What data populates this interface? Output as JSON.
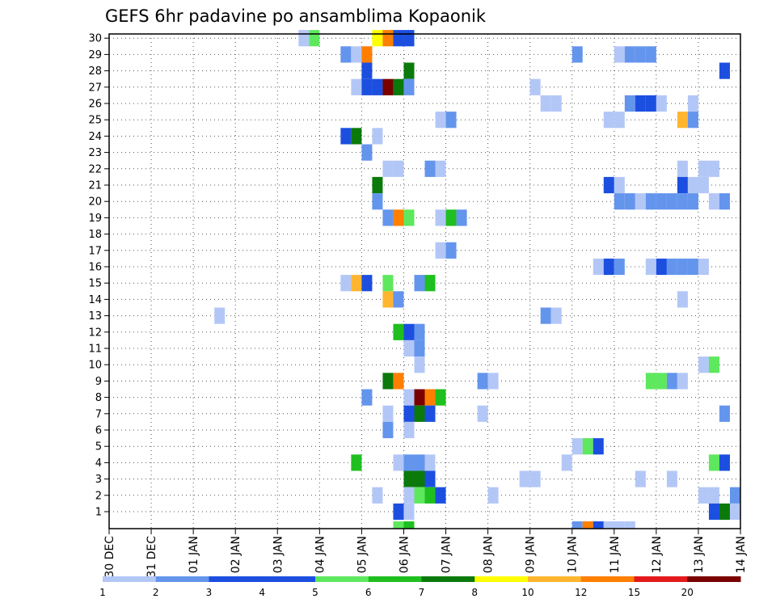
{
  "chart_data": {
    "type": "heatmap",
    "title": "GEFS 6hr padavine po ansamblima Kopaonik",
    "xlabel": "",
    "ylabel": "",
    "x_tick_labels": [
      "30 DEC",
      "31 DEC",
      "01 JAN",
      "02 JAN",
      "03 JAN",
      "04 JAN",
      "05 JAN",
      "06 JAN",
      "07 JAN",
      "08 JAN",
      "09 JAN",
      "10 JAN",
      "11 JAN",
      "12 JAN",
      "13 JAN",
      "14 JAN"
    ],
    "y_tick_labels": [
      "1",
      "2",
      "3",
      "4",
      "5",
      "6",
      "7",
      "8",
      "9",
      "10",
      "11",
      "12",
      "13",
      "14",
      "15",
      "16",
      "17",
      "18",
      "19",
      "20",
      "21",
      "22",
      "23",
      "24",
      "25",
      "26",
      "27",
      "28",
      "29",
      "30"
    ],
    "time_steps_per_day": 4,
    "x_range_days": [
      0,
      15
    ],
    "y_range_members": [
      1,
      30
    ],
    "grid": "dotted",
    "colorbar": {
      "position": "bottom",
      "levels": [
        "1",
        "2",
        "3",
        "4",
        "5",
        "6",
        "7",
        "8",
        "10",
        "12",
        "15",
        "20"
      ],
      "colors": [
        "#b3c7f7",
        "#6495ed",
        "#1c4fe0",
        "#1c4fe0",
        "#5ee85e",
        "#1fbf1f",
        "#0b7a0b",
        "#ffff00",
        "#ffb52e",
        "#ff7f00",
        "#e31a1c",
        "#7a0000"
      ]
    },
    "classes": [
      {
        "level": 1,
        "color": "#b3c7f7"
      },
      {
        "level": 2,
        "color": "#6495ed"
      },
      {
        "level": 3,
        "color": "#1c4fe0"
      },
      {
        "level": 4,
        "color": "#5ee85e"
      },
      {
        "level": 5,
        "color": "#1fbf1f"
      },
      {
        "level": 6,
        "color": "#0b7a0b"
      },
      {
        "level": 7,
        "color": "#ffff00"
      },
      {
        "level": 8,
        "color": "#ffb52e"
      },
      {
        "level": 9,
        "color": "#ff7f00"
      },
      {
        "level": 10,
        "color": "#e31a1c"
      },
      {
        "level": 11,
        "color": "#7a0000"
      }
    ],
    "cells_note": "each cell: [time_step_index_from_30DEC_00Z, member_row, class_level]",
    "cells": [
      [
        18,
        30,
        1
      ],
      [
        19,
        30,
        4
      ],
      [
        25,
        30,
        7
      ],
      [
        26,
        30,
        9
      ],
      [
        27,
        30,
        3
      ],
      [
        28,
        30,
        3
      ],
      [
        22,
        29,
        2
      ],
      [
        23,
        29,
        1
      ],
      [
        24,
        29,
        9
      ],
      [
        44,
        29,
        2
      ],
      [
        48,
        29,
        1
      ],
      [
        49,
        29,
        2
      ],
      [
        50,
        29,
        2
      ],
      [
        51,
        29,
        2
      ],
      [
        24,
        28,
        3
      ],
      [
        28,
        28,
        6
      ],
      [
        58,
        28,
        3
      ],
      [
        23,
        27,
        1
      ],
      [
        24,
        27,
        3
      ],
      [
        25,
        27,
        3
      ],
      [
        26,
        27,
        11
      ],
      [
        27,
        27,
        6
      ],
      [
        28,
        27,
        2
      ],
      [
        40,
        27,
        1
      ],
      [
        41,
        26,
        1
      ],
      [
        42,
        26,
        1
      ],
      [
        49,
        26,
        2
      ],
      [
        50,
        26,
        3
      ],
      [
        51,
        26,
        3
      ],
      [
        52,
        26,
        1
      ],
      [
        55,
        26,
        1
      ],
      [
        31,
        25,
        1
      ],
      [
        32,
        25,
        2
      ],
      [
        47,
        25,
        1
      ],
      [
        48,
        25,
        1
      ],
      [
        54,
        25,
        8
      ],
      [
        55,
        25,
        2
      ],
      [
        22,
        24,
        3
      ],
      [
        23,
        24,
        6
      ],
      [
        25,
        24,
        1
      ],
      [
        24,
        23,
        2
      ],
      [
        26,
        22,
        1
      ],
      [
        27,
        22,
        1
      ],
      [
        30,
        22,
        2
      ],
      [
        31,
        22,
        1
      ],
      [
        54,
        22,
        1
      ],
      [
        56,
        22,
        1
      ],
      [
        57,
        22,
        1
      ],
      [
        25,
        21,
        6
      ],
      [
        47,
        21,
        3
      ],
      [
        48,
        21,
        1
      ],
      [
        54,
        21,
        3
      ],
      [
        55,
        21,
        1
      ],
      [
        56,
        21,
        1
      ],
      [
        25,
        20,
        2
      ],
      [
        48,
        20,
        2
      ],
      [
        49,
        20,
        2
      ],
      [
        50,
        20,
        1
      ],
      [
        51,
        20,
        2
      ],
      [
        52,
        20,
        2
      ],
      [
        53,
        20,
        2
      ],
      [
        54,
        20,
        2
      ],
      [
        55,
        20,
        2
      ],
      [
        57,
        20,
        1
      ],
      [
        58,
        20,
        2
      ],
      [
        26,
        19,
        2
      ],
      [
        27,
        19,
        9
      ],
      [
        28,
        19,
        4
      ],
      [
        31,
        19,
        1
      ],
      [
        32,
        19,
        5
      ],
      [
        33,
        19,
        2
      ],
      [
        31,
        17,
        1
      ],
      [
        32,
        17,
        2
      ],
      [
        46,
        16,
        1
      ],
      [
        47,
        16,
        3
      ],
      [
        48,
        16,
        2
      ],
      [
        51,
        16,
        1
      ],
      [
        52,
        16,
        3
      ],
      [
        53,
        16,
        2
      ],
      [
        54,
        16,
        2
      ],
      [
        55,
        16,
        2
      ],
      [
        56,
        16,
        1
      ],
      [
        22,
        15,
        1
      ],
      [
        23,
        15,
        8
      ],
      [
        24,
        15,
        3
      ],
      [
        26,
        15,
        4
      ],
      [
        29,
        15,
        2
      ],
      [
        30,
        15,
        5
      ],
      [
        54,
        14,
        1
      ],
      [
        26,
        14,
        8
      ],
      [
        27,
        14,
        2
      ],
      [
        10,
        13,
        1
      ],
      [
        41,
        13,
        2
      ],
      [
        42,
        13,
        1
      ],
      [
        27,
        12,
        5
      ],
      [
        28,
        12,
        3
      ],
      [
        29,
        12,
        2
      ],
      [
        28,
        11,
        1
      ],
      [
        29,
        11,
        2
      ],
      [
        29,
        10,
        1
      ],
      [
        56,
        10,
        1
      ],
      [
        57,
        10,
        4
      ],
      [
        26,
        9,
        6
      ],
      [
        27,
        9,
        9
      ],
      [
        35,
        9,
        2
      ],
      [
        36,
        9,
        1
      ],
      [
        51,
        9,
        4
      ],
      [
        52,
        9,
        4
      ],
      [
        53,
        9,
        2
      ],
      [
        54,
        9,
        1
      ],
      [
        24,
        8,
        2
      ],
      [
        28,
        8,
        1
      ],
      [
        29,
        8,
        11
      ],
      [
        30,
        8,
        9
      ],
      [
        31,
        8,
        5
      ],
      [
        26,
        7,
        1
      ],
      [
        28,
        7,
        3
      ],
      [
        29,
        7,
        6
      ],
      [
        30,
        7,
        3
      ],
      [
        35,
        7,
        1
      ],
      [
        58,
        7,
        2
      ],
      [
        26,
        6,
        2
      ],
      [
        28,
        6,
        1
      ],
      [
        44,
        5,
        1
      ],
      [
        45,
        5,
        4
      ],
      [
        46,
        5,
        3
      ],
      [
        23,
        4,
        5
      ],
      [
        27,
        4,
        1
      ],
      [
        28,
        4,
        2
      ],
      [
        29,
        4,
        2
      ],
      [
        30,
        4,
        1
      ],
      [
        43,
        4,
        1
      ],
      [
        57,
        4,
        4
      ],
      [
        58,
        4,
        3
      ],
      [
        28,
        3,
        6
      ],
      [
        29,
        3,
        6
      ],
      [
        30,
        3,
        3
      ],
      [
        39,
        3,
        1
      ],
      [
        40,
        3,
        1
      ],
      [
        50,
        3,
        1
      ],
      [
        53,
        3,
        1
      ],
      [
        25,
        2,
        1
      ],
      [
        28,
        2,
        1
      ],
      [
        29,
        2,
        4
      ],
      [
        30,
        2,
        5
      ],
      [
        31,
        2,
        3
      ],
      [
        36,
        2,
        1
      ],
      [
        56,
        2,
        1
      ],
      [
        57,
        2,
        1
      ],
      [
        59,
        2,
        2
      ],
      [
        27,
        1,
        3
      ],
      [
        28,
        1,
        1
      ],
      [
        57,
        1,
        3
      ],
      [
        58,
        1,
        6
      ],
      [
        59,
        1,
        1
      ]
    ],
    "bottom_strip_note": "partial strip below row 1: [time_step_index, class_level]",
    "bottom_strip": [
      [
        27,
        4
      ],
      [
        28,
        5
      ],
      [
        44,
        2
      ],
      [
        45,
        9
      ],
      [
        46,
        3
      ],
      [
        47,
        1
      ],
      [
        48,
        1
      ],
      [
        49,
        1
      ]
    ]
  }
}
